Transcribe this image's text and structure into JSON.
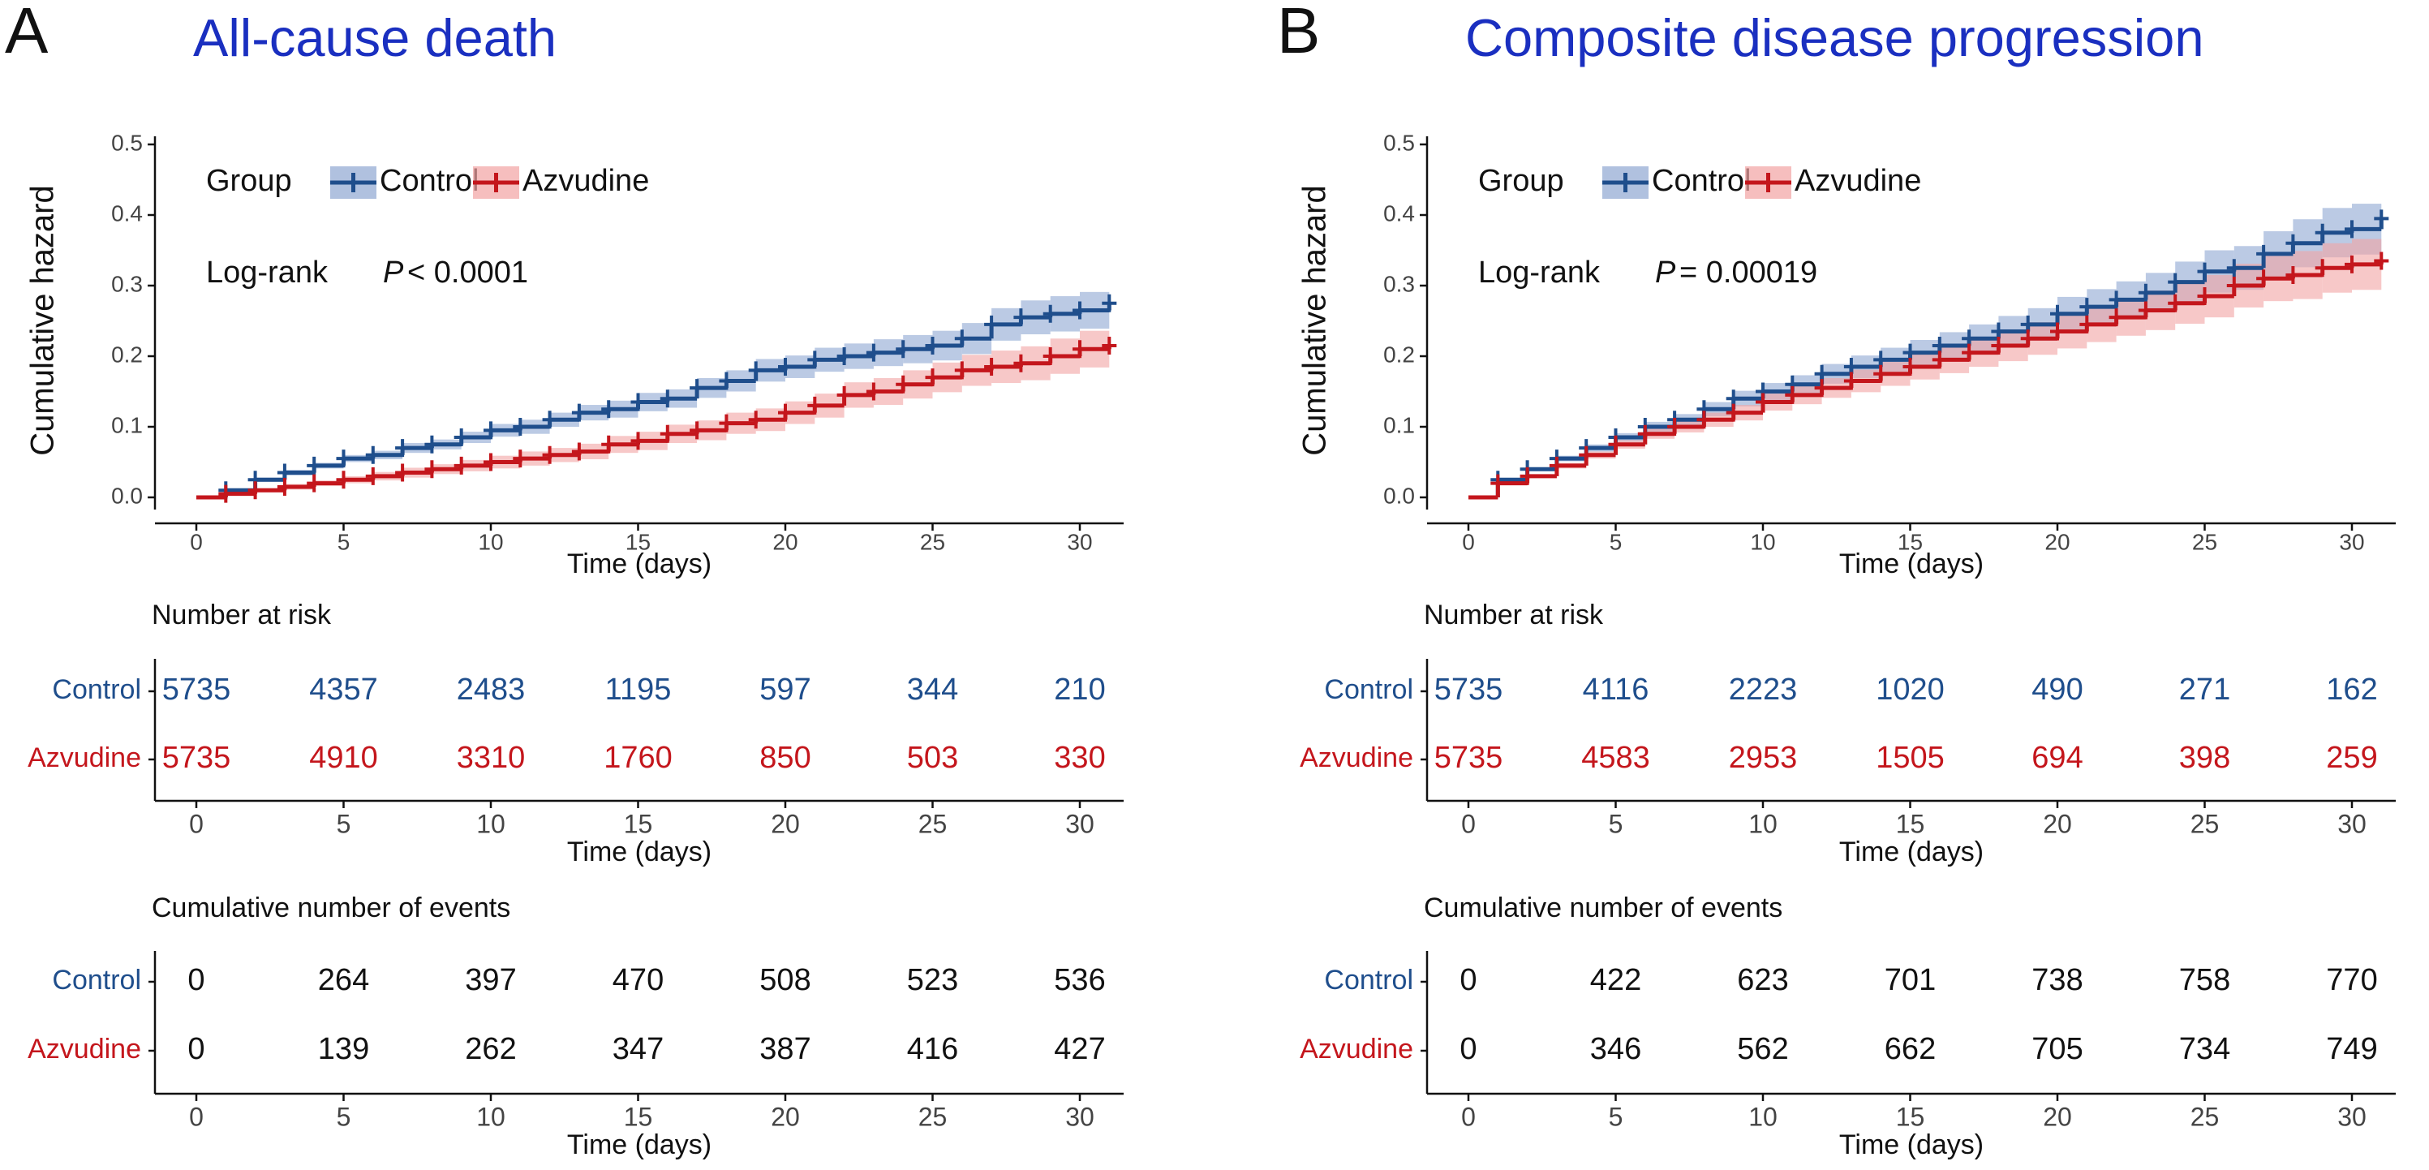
{
  "chart_data": [
    {
      "type": "line",
      "step": true,
      "panel": "A",
      "title": "All-cause death",
      "xlabel": "Time (days)",
      "ylabel": "Cumulative hazard",
      "xlim": [
        0,
        31
      ],
      "ylim": [
        0,
        0.5
      ],
      "xticks": [
        0,
        5,
        10,
        15,
        20,
        25,
        30
      ],
      "yticks": [
        {
          "value": 0,
          "label": "0.0"
        },
        0.1,
        0.2,
        0.3,
        0.4,
        0.5
      ],
      "grid": false,
      "legend_title": "Group",
      "legend_position": "top-left",
      "annotation": {
        "test": "Log-rank",
        "symbol": "P",
        "text": "< 0.0001"
      },
      "x": [
        0,
        1,
        2,
        3,
        4,
        5,
        6,
        7,
        8,
        9,
        10,
        11,
        12,
        13,
        14,
        15,
        16,
        17,
        18,
        19,
        20,
        21,
        22,
        23,
        24,
        25,
        26,
        27,
        28,
        29,
        30,
        31
      ],
      "series": [
        {
          "name": "Control",
          "color": "#1f4e8c",
          "band_color": "#8ea6d2",
          "values": [
            0,
            0.01,
            0.025,
            0.035,
            0.045,
            0.055,
            0.06,
            0.07,
            0.075,
            0.085,
            0.095,
            0.1,
            0.11,
            0.12,
            0.125,
            0.135,
            0.14,
            0.155,
            0.165,
            0.18,
            0.185,
            0.195,
            0.2,
            0.205,
            0.21,
            0.215,
            0.225,
            0.245,
            0.255,
            0.26,
            0.265,
            0.275
          ],
          "lower": [
            0,
            0.008,
            0.022,
            0.031,
            0.041,
            0.05,
            0.054,
            0.063,
            0.068,
            0.077,
            0.086,
            0.09,
            0.1,
            0.109,
            0.113,
            0.122,
            0.127,
            0.141,
            0.15,
            0.164,
            0.169,
            0.178,
            0.182,
            0.186,
            0.19,
            0.194,
            0.203,
            0.222,
            0.231,
            0.235,
            0.239,
            0.248
          ],
          "upper": [
            0,
            0.012,
            0.028,
            0.039,
            0.049,
            0.06,
            0.066,
            0.077,
            0.082,
            0.093,
            0.104,
            0.11,
            0.12,
            0.131,
            0.137,
            0.148,
            0.153,
            0.169,
            0.18,
            0.196,
            0.201,
            0.212,
            0.218,
            0.224,
            0.23,
            0.236,
            0.247,
            0.268,
            0.279,
            0.285,
            0.291,
            0.302
          ]
        },
        {
          "name": "Azvudine",
          "color": "#c4161c",
          "band_color": "#f2a3a3",
          "values": [
            0,
            0.005,
            0.01,
            0.015,
            0.02,
            0.025,
            0.03,
            0.035,
            0.04,
            0.045,
            0.05,
            0.055,
            0.06,
            0.065,
            0.075,
            0.08,
            0.09,
            0.095,
            0.105,
            0.11,
            0.12,
            0.13,
            0.145,
            0.15,
            0.16,
            0.17,
            0.18,
            0.185,
            0.19,
            0.2,
            0.21,
            0.215
          ],
          "lower": [
            0,
            0.003,
            0.007,
            0.011,
            0.016,
            0.02,
            0.024,
            0.028,
            0.033,
            0.037,
            0.041,
            0.045,
            0.05,
            0.054,
            0.063,
            0.067,
            0.077,
            0.081,
            0.09,
            0.094,
            0.104,
            0.113,
            0.127,
            0.131,
            0.14,
            0.149,
            0.158,
            0.162,
            0.166,
            0.175,
            0.184,
            0.188
          ],
          "upper": [
            0,
            0.007,
            0.013,
            0.019,
            0.024,
            0.03,
            0.036,
            0.042,
            0.047,
            0.053,
            0.059,
            0.065,
            0.07,
            0.076,
            0.087,
            0.093,
            0.103,
            0.109,
            0.12,
            0.126,
            0.136,
            0.147,
            0.163,
            0.169,
            0.18,
            0.191,
            0.202,
            0.208,
            0.214,
            0.225,
            0.236,
            0.242
          ]
        }
      ],
      "tables": [
        {
          "title": "Number at risk",
          "colored_values": true,
          "rows": [
            {
              "name": "Control",
              "values": [
                5735,
                4357,
                2483,
                1195,
                597,
                344,
                210
              ]
            },
            {
              "name": "Azvudine",
              "values": [
                5735,
                4910,
                3310,
                1760,
                850,
                503,
                330
              ]
            }
          ]
        },
        {
          "title": "Cumulative number of events",
          "colored_values": false,
          "rows": [
            {
              "name": "Control",
              "values": [
                0,
                264,
                397,
                470,
                508,
                523,
                536
              ]
            },
            {
              "name": "Azvudine",
              "values": [
                0,
                139,
                262,
                347,
                387,
                416,
                427
              ]
            }
          ]
        }
      ]
    },
    {
      "type": "line",
      "step": true,
      "panel": "B",
      "title": "Composite disease progression",
      "xlabel": "Time (days)",
      "ylabel": "Cumulative hazard",
      "xlim": [
        0,
        31
      ],
      "ylim": [
        0,
        0.5
      ],
      "xticks": [
        0,
        5,
        10,
        15,
        20,
        25,
        30
      ],
      "yticks": [
        {
          "value": 0,
          "label": "0.0"
        },
        0.1,
        0.2,
        0.3,
        0.4,
        0.5
      ],
      "grid": false,
      "legend_title": "Group",
      "legend_position": "top-left",
      "annotation": {
        "test": "Log-rank",
        "symbol": "P",
        "text": "= 0.00019"
      },
      "x": [
        0,
        1,
        2,
        3,
        4,
        5,
        6,
        7,
        8,
        9,
        10,
        11,
        12,
        13,
        14,
        15,
        16,
        17,
        18,
        19,
        20,
        21,
        22,
        23,
        24,
        25,
        26,
        27,
        28,
        29,
        30,
        31
      ],
      "series": [
        {
          "name": "Control",
          "color": "#1f4e8c",
          "band_color": "#8ea6d2",
          "values": [
            0,
            0.025,
            0.04,
            0.055,
            0.07,
            0.085,
            0.1,
            0.11,
            0.125,
            0.14,
            0.15,
            0.16,
            0.175,
            0.185,
            0.195,
            0.205,
            0.215,
            0.225,
            0.235,
            0.245,
            0.26,
            0.27,
            0.28,
            0.29,
            0.305,
            0.32,
            0.325,
            0.345,
            0.36,
            0.375,
            0.38,
            0.395
          ],
          "lower": [
            0,
            0.024,
            0.038,
            0.051,
            0.065,
            0.079,
            0.093,
            0.102,
            0.115,
            0.129,
            0.138,
            0.147,
            0.161,
            0.169,
            0.178,
            0.187,
            0.196,
            0.205,
            0.213,
            0.222,
            0.236,
            0.245,
            0.254,
            0.262,
            0.276,
            0.29,
            0.294,
            0.313,
            0.326,
            0.34,
            0.344,
            0.358
          ],
          "upper": [
            0,
            0.026,
            0.042,
            0.059,
            0.075,
            0.091,
            0.107,
            0.118,
            0.135,
            0.151,
            0.162,
            0.173,
            0.189,
            0.201,
            0.212,
            0.223,
            0.234,
            0.245,
            0.257,
            0.268,
            0.284,
            0.295,
            0.306,
            0.318,
            0.334,
            0.35,
            0.356,
            0.377,
            0.394,
            0.41,
            0.416,
            0.432
          ]
        },
        {
          "name": "Azvudine",
          "color": "#c4161c",
          "band_color": "#f2a3a3",
          "values": [
            0,
            0.02,
            0.03,
            0.045,
            0.06,
            0.075,
            0.09,
            0.1,
            0.11,
            0.12,
            0.135,
            0.145,
            0.155,
            0.165,
            0.175,
            0.185,
            0.195,
            0.205,
            0.215,
            0.225,
            0.235,
            0.245,
            0.255,
            0.265,
            0.275,
            0.285,
            0.3,
            0.31,
            0.315,
            0.325,
            0.33,
            0.335
          ],
          "lower": [
            0,
            0.019,
            0.028,
            0.041,
            0.055,
            0.069,
            0.083,
            0.092,
            0.1,
            0.109,
            0.123,
            0.132,
            0.141,
            0.149,
            0.158,
            0.167,
            0.176,
            0.185,
            0.193,
            0.202,
            0.211,
            0.22,
            0.229,
            0.237,
            0.246,
            0.255,
            0.269,
            0.278,
            0.281,
            0.29,
            0.294,
            0.298
          ],
          "upper": [
            0,
            0.021,
            0.032,
            0.049,
            0.065,
            0.081,
            0.097,
            0.108,
            0.12,
            0.131,
            0.147,
            0.158,
            0.169,
            0.181,
            0.192,
            0.203,
            0.214,
            0.225,
            0.237,
            0.248,
            0.259,
            0.27,
            0.281,
            0.293,
            0.304,
            0.315,
            0.331,
            0.342,
            0.349,
            0.36,
            0.366,
            0.372
          ]
        }
      ],
      "tables": [
        {
          "title": "Number at risk",
          "colored_values": true,
          "rows": [
            {
              "name": "Control",
              "values": [
                5735,
                4116,
                2223,
                1020,
                490,
                271,
                162
              ]
            },
            {
              "name": "Azvudine",
              "values": [
                5735,
                4583,
                2953,
                1505,
                694,
                398,
                259
              ]
            }
          ]
        },
        {
          "title": "Cumulative number of events",
          "colored_values": false,
          "rows": [
            {
              "name": "Control",
              "values": [
                0,
                422,
                623,
                701,
                738,
                758,
                770
              ]
            },
            {
              "name": "Azvudine",
              "values": [
                0,
                346,
                562,
                662,
                705,
                734,
                749
              ]
            }
          ]
        }
      ]
    }
  ]
}
